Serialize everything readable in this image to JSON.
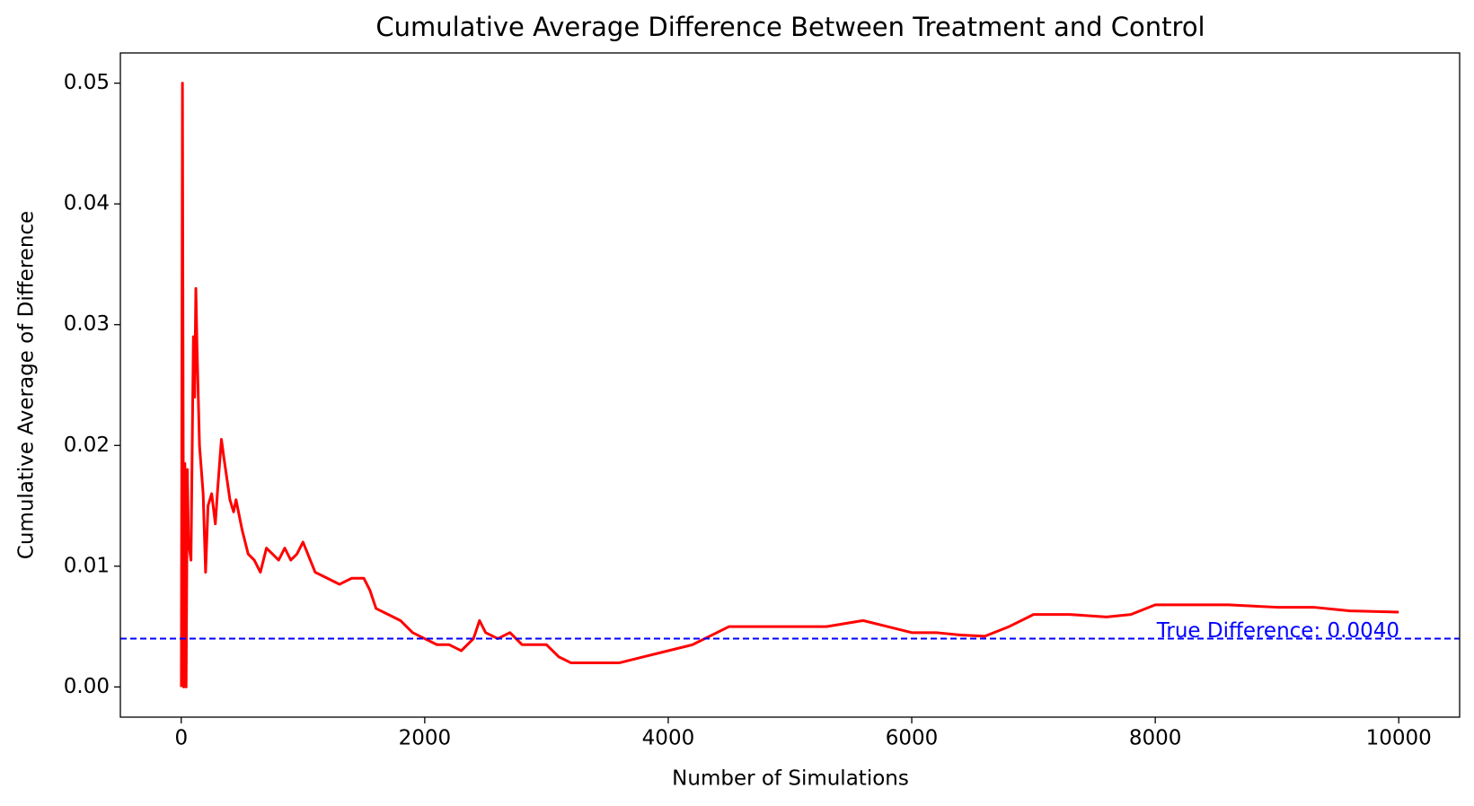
{
  "chart_data": {
    "type": "line",
    "title": "Cumulative Average Difference Between Treatment and Control",
    "xlabel": "Number of Simulations",
    "ylabel": "Cumulative Average of Difference",
    "x": [
      1,
      10,
      20,
      30,
      40,
      50,
      60,
      80,
      100,
      110,
      120,
      130,
      150,
      180,
      200,
      220,
      250,
      280,
      300,
      330,
      350,
      400,
      430,
      450,
      500,
      550,
      600,
      650,
      700,
      750,
      800,
      850,
      900,
      950,
      1000,
      1100,
      1200,
      1300,
      1400,
      1500,
      1550,
      1600,
      1700,
      1800,
      1900,
      2000,
      2100,
      2200,
      2300,
      2400,
      2450,
      2500,
      2600,
      2700,
      2800,
      2900,
      3000,
      3100,
      3200,
      3400,
      3600,
      3800,
      4000,
      4200,
      4400,
      4500,
      4800,
      5000,
      5300,
      5600,
      5800,
      6000,
      6200,
      6400,
      6600,
      6800,
      7000,
      7300,
      7600,
      7800,
      8000,
      8300,
      8600,
      9000,
      9300,
      9600,
      10000
    ],
    "series": [
      {
        "color": "#ff0000",
        "values": [
          0,
          0.05,
          0,
          0.0185,
          0,
          0.018,
          0.012,
          0.0105,
          0.029,
          0.024,
          0.033,
          0.028,
          0.02,
          0.016,
          0.0095,
          0.015,
          0.016,
          0.0135,
          0.0165,
          0.0205,
          0.019,
          0.0155,
          0.0145,
          0.0155,
          0.013,
          0.011,
          0.0105,
          0.0095,
          0.0115,
          0.011,
          0.0105,
          0.0115,
          0.0105,
          0.011,
          0.012,
          0.0095,
          0.009,
          0.0085,
          0.009,
          0.009,
          0.008,
          0.0065,
          0.006,
          0.0055,
          0.0045,
          0.004,
          0.0035,
          0.0035,
          0.003,
          0.004,
          0.0055,
          0.0045,
          0.004,
          0.0045,
          0.0035,
          0.0035,
          0.0035,
          0.0025,
          0.002,
          0.002,
          0.002,
          0.0025,
          0.003,
          0.0035,
          0.0045,
          0.005,
          0.005,
          0.005,
          0.005,
          0.0055,
          0.005,
          0.0045,
          0.0045,
          0.0043,
          0.0042,
          0.005,
          0.006,
          0.006,
          0.0058,
          0.006,
          0.0068,
          0.0068,
          0.0068,
          0.0066,
          0.0066,
          0.0063,
          0.0062
        ]
      }
    ],
    "hline": {
      "value": 0.004,
      "label": "True Difference: 0.0040",
      "color": "#0000ff"
    },
    "xlim": [
      -500,
      10500
    ],
    "xticks": [
      0,
      2000,
      4000,
      6000,
      8000,
      10000
    ],
    "ylim": [
      -0.0025,
      0.0525
    ],
    "yticks": [
      {
        "value": 0,
        "label": "0.00"
      },
      {
        "value": 0.01,
        "label": "0.01"
      },
      {
        "value": 0.02,
        "label": "0.02"
      },
      {
        "value": 0.03,
        "label": "0.03"
      },
      {
        "value": 0.04,
        "label": "0.04"
      },
      {
        "value": 0.05,
        "label": "0.05"
      }
    ]
  }
}
